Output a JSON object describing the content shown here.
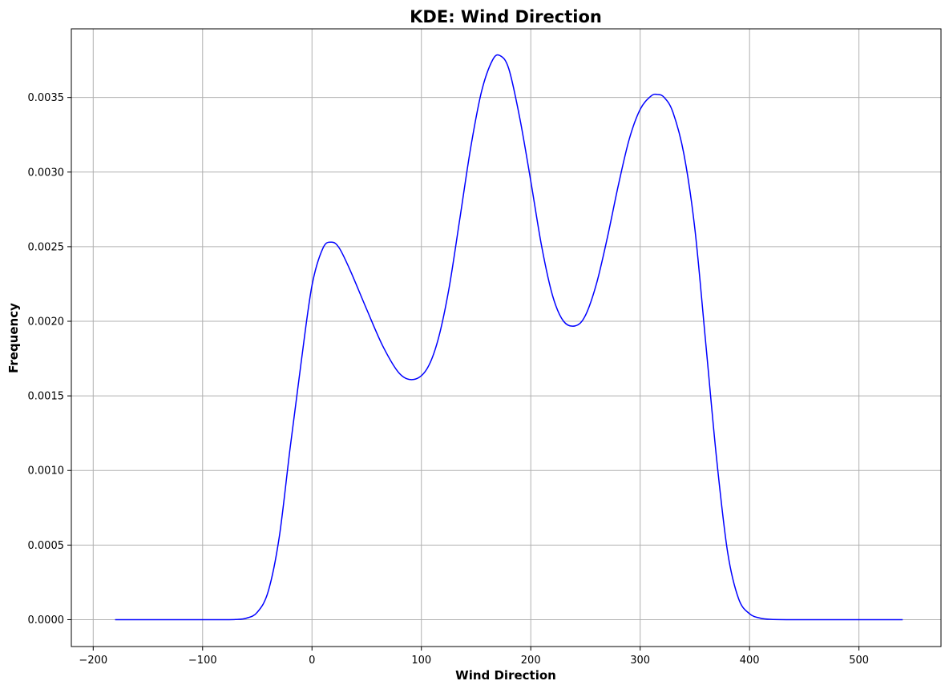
{
  "chart_data": {
    "type": "line",
    "title": "KDE: Wind Direction",
    "xlabel": "Wind Direction",
    "ylabel": "Frequency",
    "xlim": [
      -220,
      575
    ],
    "ylim": [
      -0.00018,
      0.00396
    ],
    "grid": true,
    "x_ticks": [
      -200,
      -100,
      0,
      100,
      200,
      300,
      400,
      500
    ],
    "x_tick_labels": [
      "−200",
      "−100",
      "0",
      "100",
      "200",
      "300",
      "400",
      "500"
    ],
    "y_ticks": [
      0.0,
      0.0005,
      0.001,
      0.0015,
      0.002,
      0.0025,
      0.003,
      0.0035
    ],
    "y_tick_labels": [
      "0.0000",
      "0.0005",
      "0.0010",
      "0.0015",
      "0.0020",
      "0.0025",
      "0.0030",
      "0.0035"
    ],
    "series": [
      {
        "color": "#0000ff",
        "x": [
          -180,
          -150,
          -120,
          -100,
          -80,
          -70,
          -60,
          -50,
          -40,
          -30,
          -20,
          -10,
          0,
          10,
          18,
          25,
          35,
          50,
          65,
          80,
          93,
          105,
          115,
          125,
          135,
          145,
          155,
          165,
          172,
          180,
          190,
          200,
          210,
          220,
          230,
          241,
          250,
          260,
          270,
          280,
          290,
          300,
          310,
          316,
          322,
          330,
          340,
          350,
          360,
          370,
          380,
          390,
          400,
          410,
          420,
          440,
          470,
          500,
          540
        ],
        "y": [
          0.0,
          0.0,
          0.0,
          0.0,
          0.0,
          1e-06,
          1e-05,
          5e-05,
          0.00019,
          0.00055,
          0.00115,
          0.00172,
          0.00224,
          0.00249,
          0.00253,
          0.00249,
          0.00234,
          0.00208,
          0.00183,
          0.00165,
          0.00161,
          0.00168,
          0.00187,
          0.00221,
          0.00268,
          0.00316,
          0.00354,
          0.00375,
          0.00378,
          0.00369,
          0.00336,
          0.00294,
          0.0025,
          0.00217,
          0.002,
          0.00197,
          0.00204,
          0.00225,
          0.00256,
          0.00291,
          0.00322,
          0.00342,
          0.00351,
          0.00352,
          0.0035,
          0.0034,
          0.00312,
          0.00262,
          0.00185,
          0.00107,
          0.00045,
          0.00014,
          4e-05,
          1e-05,
          2e-06,
          0.0,
          0.0,
          0.0,
          0.0
        ]
      }
    ]
  }
}
